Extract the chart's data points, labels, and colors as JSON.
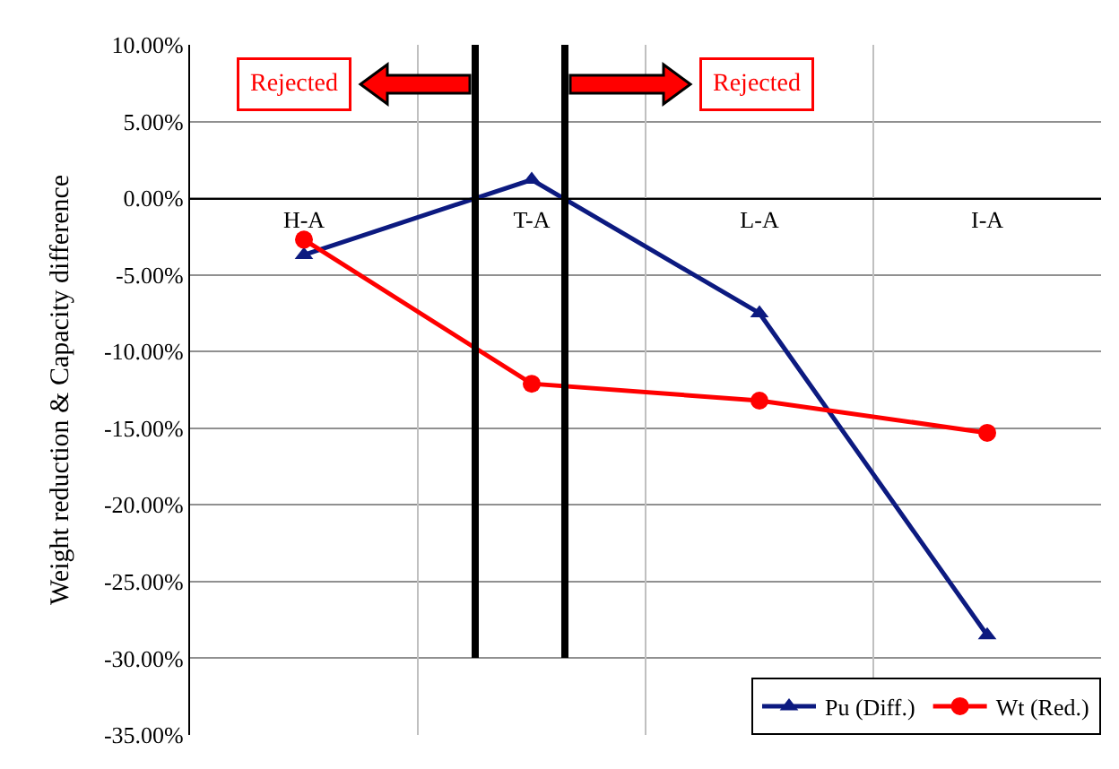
{
  "chart_data": {
    "type": "line",
    "ylabel": "Weight reduction & Capacity difference",
    "categories": [
      "H-A",
      "T-A",
      "L-A",
      "I-A"
    ],
    "series": [
      {
        "name": "Pu (Diff.)",
        "color": "#0c1a80",
        "marker": "triangle",
        "values": [
          -3.7,
          1.2,
          -7.5,
          -28.5
        ]
      },
      {
        "name": "Wt (Red.)",
        "color": "#ff0000",
        "marker": "circle",
        "values": [
          -2.7,
          -12.1,
          -13.2,
          -15.3
        ]
      }
    ],
    "ylim": [
      -35,
      10
    ],
    "yticks": [
      {
        "value": 10,
        "label": "10.00%"
      },
      {
        "value": 5,
        "label": "5.00%"
      },
      {
        "value": 0,
        "label": "0.00%"
      },
      {
        "value": -5,
        "label": "-5.00%"
      },
      {
        "value": -10,
        "label": "-10.00%"
      },
      {
        "value": -15,
        "label": "-15.00%"
      },
      {
        "value": -20,
        "label": "-20.00%"
      },
      {
        "value": -25,
        "label": "-25.00%"
      },
      {
        "value": -30,
        "label": "-30.00%"
      },
      {
        "value": -35,
        "label": "-35.00%"
      }
    ],
    "annotations": [
      "Rejected",
      "Rejected"
    ],
    "grid": true,
    "legend": "bottom right",
    "line_style": "solid"
  }
}
